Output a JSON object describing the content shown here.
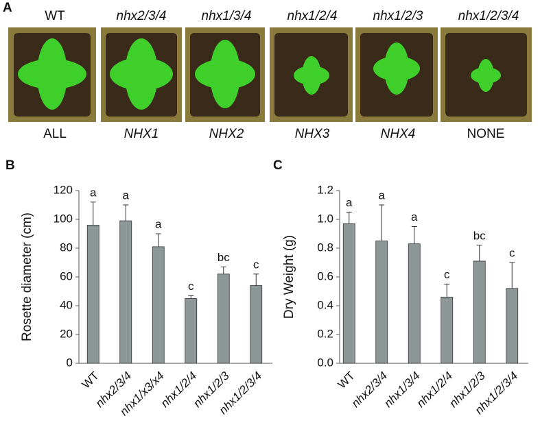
{
  "photo_panel": {
    "label": "A",
    "genotypes": [
      "WT",
      "nhx2/3/4",
      "nhx1/3/4",
      "nhx1/2/4",
      "nhx1/2/3",
      "nhx1/2/3/4"
    ],
    "remaining": [
      "ALL",
      "NHX1",
      "NHX2",
      "NHX3",
      "NHX4",
      "NONE"
    ]
  },
  "chart_data": [
    {
      "type": "bar",
      "panel": "B",
      "ylabel": "Rosette diameter (cm)",
      "categories": [
        "WT",
        "nhx2/3/4",
        "nhx1/x3/x4",
        "nhx1/2/4",
        "nhx1/2/3",
        "nhx1/2/3/4"
      ],
      "values": [
        96,
        99,
        81,
        45,
        62,
        54
      ],
      "errors": [
        16,
        11,
        9,
        2,
        5,
        8
      ],
      "letters": [
        "a",
        "a",
        "a",
        "c",
        "bc",
        "c"
      ],
      "color": "#8e9797",
      "ylim": [
        0,
        120
      ],
      "yticks": [
        0,
        20,
        40,
        60,
        80,
        100,
        120
      ]
    },
    {
      "type": "bar",
      "panel": "C",
      "ylabel": "Dry Weight (g)",
      "categories": [
        "WT",
        "nhx2/3/4",
        "nhx1/3/4",
        "nhx1/2/4",
        "nhx1/2/3",
        "nhx1/2/3/4"
      ],
      "values": [
        0.97,
        0.85,
        0.83,
        0.46,
        0.71,
        0.52
      ],
      "errors": [
        0.08,
        0.25,
        0.12,
        0.09,
        0.11,
        0.18
      ],
      "letters": [
        "a",
        "a",
        "a",
        "c",
        "bc",
        "c"
      ],
      "color": "#8e9797",
      "ylim": [
        0,
        1.2
      ],
      "yticks": [
        {
          "value": 0,
          "label": "0.0"
        },
        {
          "value": 0.2,
          "label": "0.2"
        },
        {
          "value": 0.4,
          "label": "0.4"
        },
        {
          "value": 0.6,
          "label": "0.6"
        },
        {
          "value": 0.8,
          "label": "0.8"
        },
        {
          "value": 1,
          "label": "1.0"
        },
        {
          "value": 1.2,
          "label": "1.2"
        }
      ]
    }
  ]
}
